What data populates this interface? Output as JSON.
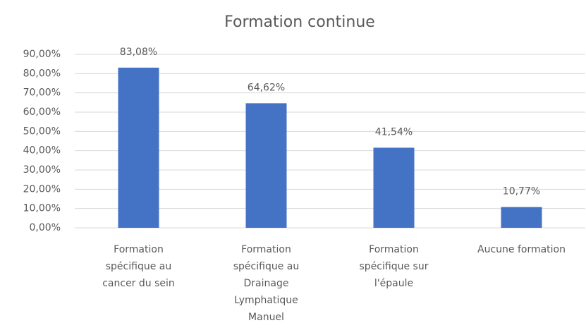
{
  "chart_data": {
    "type": "bar",
    "title": "Formation continue",
    "categories": [
      "Formation spécifique au cancer du sein",
      "Formation spécifique au Drainage Lymphatique Manuel",
      "Formation spécifique sur l'épaule",
      "Aucune formation"
    ],
    "values": [
      83.08,
      64.62,
      41.54,
      10.77
    ],
    "value_labels": [
      "83,08%",
      "64,62%",
      "41,54%",
      "10,77%"
    ],
    "color": "#4472c4",
    "ylim": [
      0,
      90
    ],
    "yticks": [
      {
        "value": 0,
        "label": "0,00%"
      },
      {
        "value": 10,
        "label": "10,00%"
      },
      {
        "value": 20,
        "label": "20,00%"
      },
      {
        "value": 30,
        "label": "30,00%"
      },
      {
        "value": 40,
        "label": "40,00%"
      },
      {
        "value": 50,
        "label": "50,00%"
      },
      {
        "value": 60,
        "label": "60,00%"
      },
      {
        "value": 70,
        "label": "70,00%"
      },
      {
        "value": 80,
        "label": "80,00%"
      },
      {
        "value": 90,
        "label": "90,00%"
      }
    ],
    "grid": true
  }
}
